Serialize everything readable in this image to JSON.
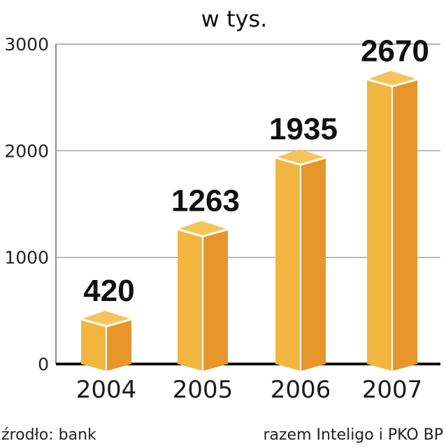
{
  "chart_data": {
    "type": "bar",
    "title": "w tys.",
    "categories": [
      "2004",
      "2005",
      "2006",
      "2007"
    ],
    "values": [
      420,
      1263,
      1935,
      2670
    ],
    "value_labels": [
      "420",
      "1263",
      "1935",
      "2670"
    ],
    "highlight_index": 3,
    "ylim": [
      0,
      3000
    ],
    "yticks": [
      "0",
      "1000",
      "2000",
      "3000"
    ],
    "grid": true,
    "xlabel": "",
    "ylabel": "",
    "source": "źrodło: bank",
    "note": "razem Inteligo i PKO BP",
    "colors": {
      "bar_left": "#F2B640",
      "bar_right": "#E6962A",
      "bar_top": "#F6C458",
      "highlight_label": "#C8102E",
      "label": "#111111"
    }
  }
}
